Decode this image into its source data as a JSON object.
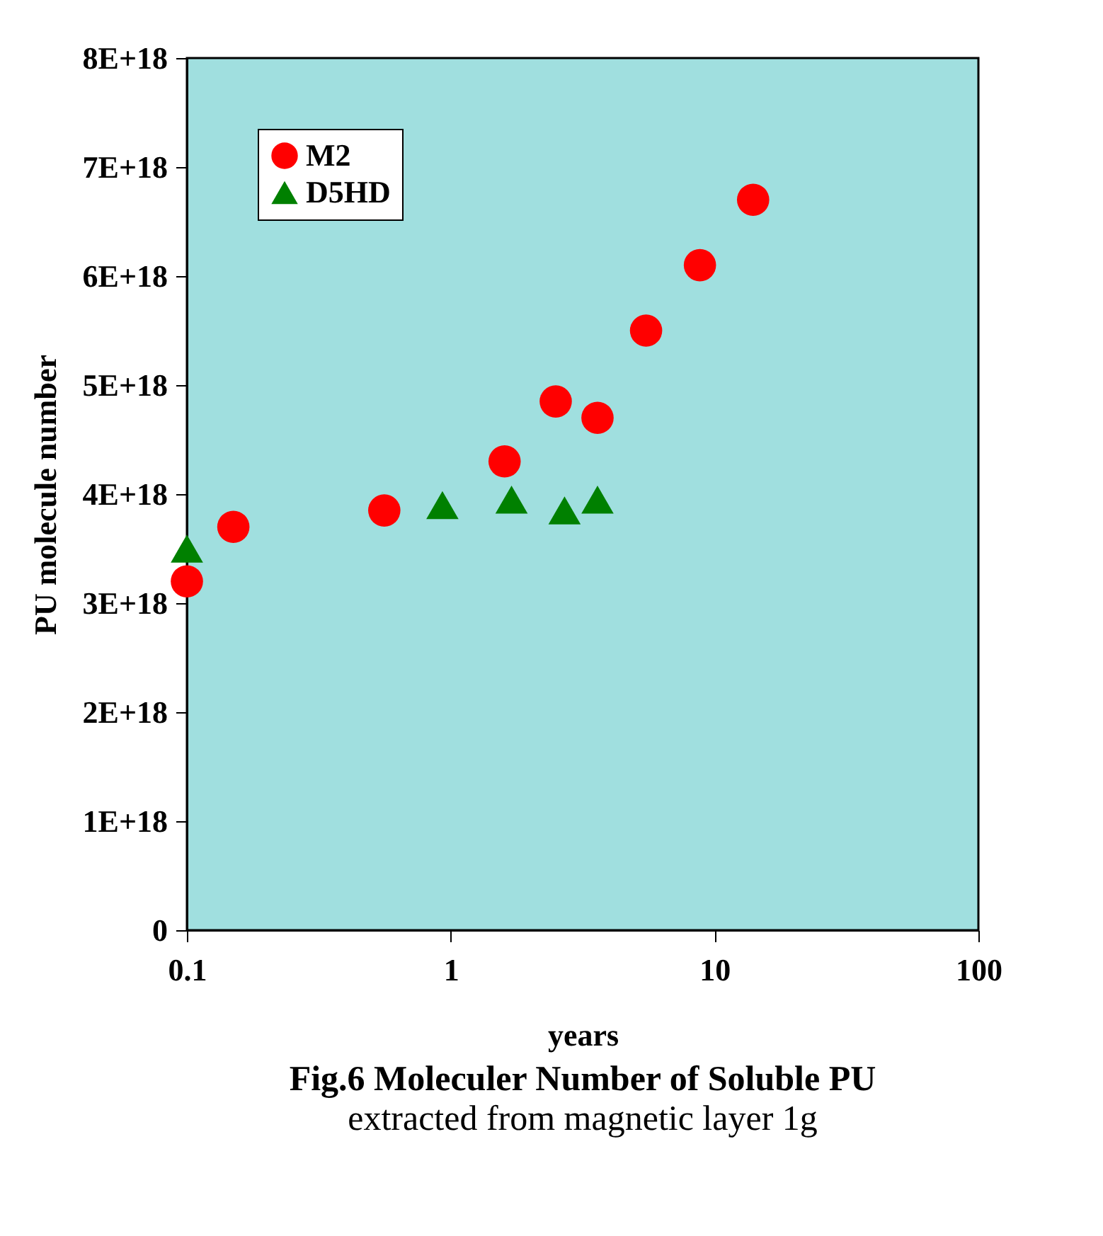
{
  "chart_data": {
    "type": "scatter",
    "title": "Fig.6 Moleculer Number  of Soluble PU",
    "subtitle": "extracted from magnetic layer 1g",
    "xlabel": "years",
    "ylabel": "PU molecule number",
    "series": [
      {
        "name": "M2",
        "color": "#ff0000",
        "marker": "circle",
        "x": [
          0.1,
          0.15,
          0.56,
          1.6,
          2.5,
          3.6,
          5.5,
          8.8,
          14
        ],
        "values": [
          3.2e+18,
          3.7e+18,
          3.85e+18,
          4.3e+18,
          4.85e+18,
          4.7e+18,
          5.5e+18,
          6.1e+18,
          6.7e+18
        ]
      },
      {
        "name": "D5HD",
        "color": "#008000",
        "marker": "triangle",
        "x": [
          0.1,
          0.93,
          1.7,
          2.7,
          3.6
        ],
        "values": [
          3.5e+18,
          3.9e+18,
          3.95e+18,
          3.85e+18,
          3.95e+18
        ]
      }
    ],
    "log": "x",
    "xlim": [
      0.1,
      100
    ],
    "xticks": [
      0.1,
      1,
      10,
      100
    ],
    "ylim": [
      0,
      8e+18
    ],
    "yticks": [
      0,
      {
        "value": 1e+18,
        "label": "1E+18"
      },
      {
        "value": 2e+18,
        "label": "2E+18"
      },
      {
        "value": 3e+18,
        "label": "3E+18"
      },
      {
        "value": 4e+18,
        "label": "4E+18"
      },
      {
        "value": 5e+18,
        "label": "5E+18"
      },
      {
        "value": 6e+18,
        "label": "6E+18"
      },
      {
        "value": 7e+18,
        "label": "7E+18"
      },
      {
        "value": 8e+18,
        "label": "8E+18"
      }
    ],
    "grid": false,
    "legend": "top left"
  }
}
